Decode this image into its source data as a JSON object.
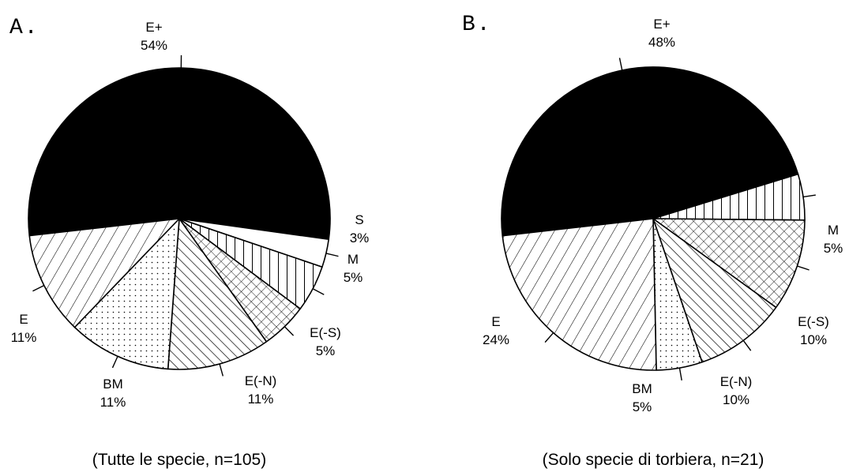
{
  "chart_data": [
    {
      "type": "pie",
      "panel": "A.",
      "caption": "(Tutte le specie, n=105)",
      "slices": [
        {
          "label": "E+",
          "value": 54,
          "pct_label": "54%",
          "pattern": "solid"
        },
        {
          "label": "S",
          "value": 3,
          "pct_label": "3%",
          "pattern": "blank"
        },
        {
          "label": "M",
          "value": 5,
          "pct_label": "5%",
          "pattern": "vertical"
        },
        {
          "label": "E(-S)",
          "value": 5,
          "pct_label": "5%",
          "pattern": "crosshatch"
        },
        {
          "label": "E(-N)",
          "value": 11,
          "pct_label": "11%",
          "pattern": "backslash"
        },
        {
          "label": "BM",
          "value": 11,
          "pct_label": "11%",
          "pattern": "dots"
        },
        {
          "label": "E",
          "value": 11,
          "pct_label": "11%",
          "pattern": "slash"
        }
      ]
    },
    {
      "type": "pie",
      "panel": "B.",
      "caption": "(Solo specie di torbiera, n=21)",
      "slices": [
        {
          "label": "E+",
          "value": 48,
          "pct_label": "48%",
          "pattern": "solid"
        },
        {
          "label": "M",
          "value": 5,
          "pct_label": "5%",
          "pattern": "vertical"
        },
        {
          "label": "E(-S)",
          "value": 10,
          "pct_label": "10%",
          "pattern": "crosshatch"
        },
        {
          "label": "E(-N)",
          "value": 10,
          "pct_label": "10%",
          "pattern": "backslash"
        },
        {
          "label": "BM",
          "value": 5,
          "pct_label": "5%",
          "pattern": "dots"
        },
        {
          "label": "E",
          "value": 24,
          "pct_label": "24%",
          "pattern": "slash"
        }
      ]
    }
  ]
}
